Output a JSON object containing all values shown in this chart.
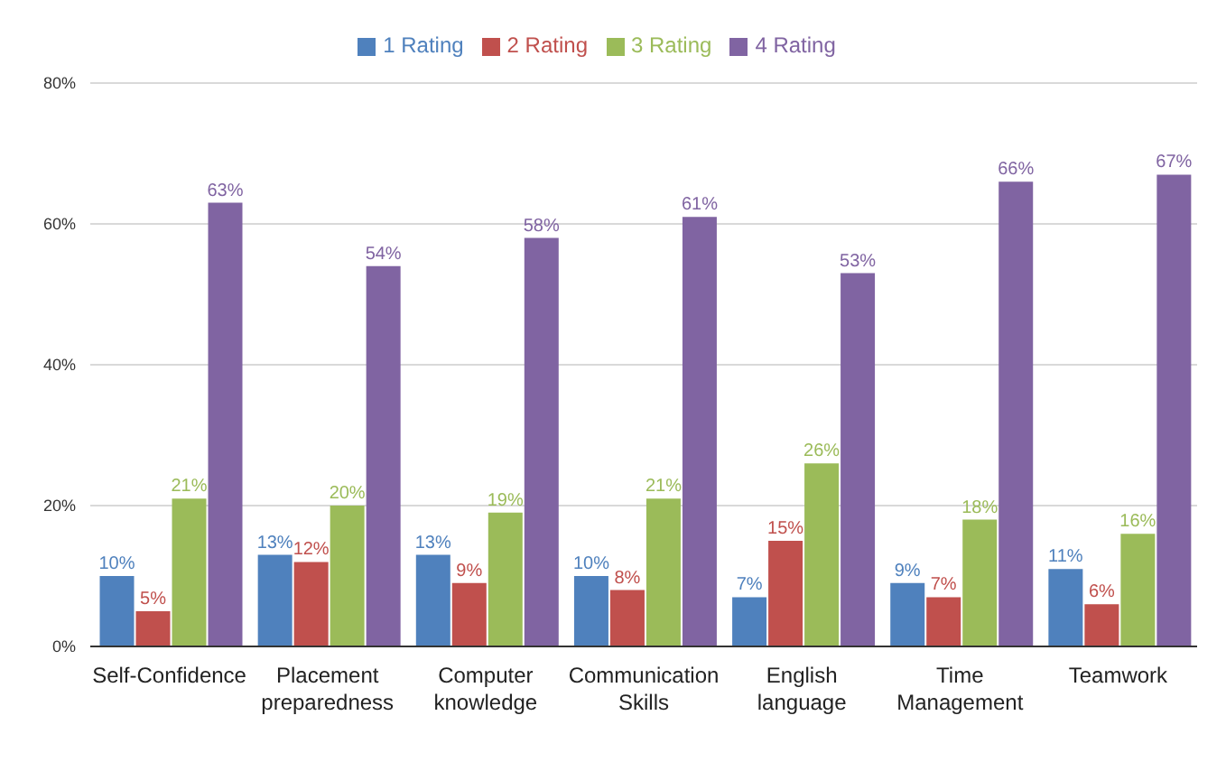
{
  "chart_data": {
    "type": "bar",
    "categories": [
      "Self-Confidence",
      "Placement preparedness",
      "Computer knowledge",
      "Communication Skills",
      "English language",
      "Time Management",
      "Teamwork"
    ],
    "series": [
      {
        "name": "1 Rating",
        "color": "#4f81bd",
        "values": [
          10,
          13,
          13,
          10,
          7,
          9,
          11
        ],
        "value_labels": [
          "10%",
          "13%",
          "13%",
          "10%",
          "7%",
          "9%",
          "11%"
        ]
      },
      {
        "name": "2 Rating",
        "color": "#c0504d",
        "values": [
          5,
          12,
          9,
          8,
          15,
          7,
          6
        ],
        "value_labels": [
          "5%",
          "12%",
          "9%",
          "8%",
          "15%",
          "7%",
          "6%"
        ]
      },
      {
        "name": "3 Rating",
        "color": "#9bbb59",
        "values": [
          21,
          20,
          19,
          21,
          26,
          18,
          16
        ],
        "value_labels": [
          "21%",
          "20%",
          "19%",
          "21%",
          "26%",
          "18%",
          "16%"
        ]
      },
      {
        "name": "4 Rating",
        "color": "#8064a2",
        "values": [
          63,
          54,
          58,
          61,
          53,
          66,
          67
        ],
        "value_labels": [
          "63%",
          "54%",
          "58%",
          "61%",
          "53%",
          "66%",
          "67%"
        ]
      }
    ],
    "ylim": [
      0,
      80
    ],
    "yticks": [
      {
        "value": 0,
        "label": "0%"
      },
      {
        "value": 20,
        "label": "20%"
      },
      {
        "value": 40,
        "label": "40%"
      },
      {
        "value": 60,
        "label": "60%"
      },
      {
        "value": 80,
        "label": "80%"
      }
    ],
    "grid": "y",
    "legend": "top"
  }
}
